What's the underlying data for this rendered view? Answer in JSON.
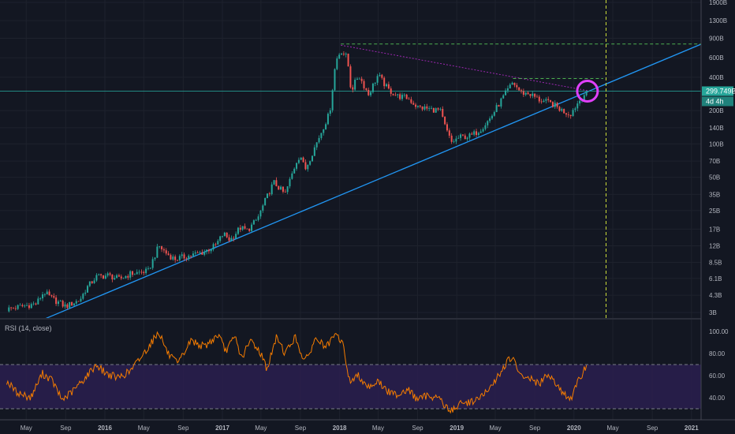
{
  "chart_data": [
    {
      "type": "candlestick",
      "title": "",
      "scale": "log",
      "ylim": [
        2.75,
        2000
      ],
      "y_ticks": [
        {
          "value": 3,
          "label": "3B"
        },
        {
          "value": 4.3,
          "label": "4.3B"
        },
        {
          "value": 6.1,
          "label": "6.1B"
        },
        {
          "value": 8.5,
          "label": "8.5B"
        },
        {
          "value": 12,
          "label": "12B"
        },
        {
          "value": 17,
          "label": "17B"
        },
        {
          "value": 25,
          "label": "25B"
        },
        {
          "value": 35,
          "label": "35B"
        },
        {
          "value": 50,
          "label": "50B"
        },
        {
          "value": 70,
          "label": "70B"
        },
        {
          "value": 100,
          "label": "100B"
        },
        {
          "value": 140,
          "label": "140B"
        },
        {
          "value": 200,
          "label": "200B"
        },
        {
          "value": 400,
          "label": "400B"
        },
        {
          "value": 600,
          "label": "600B"
        },
        {
          "value": 900,
          "label": "900B"
        },
        {
          "value": 1300,
          "label": "1300B"
        },
        {
          "value": 1900,
          "label": "1900B"
        }
      ],
      "x_ticks": [
        {
          "date": "2015-05-01",
          "label": "May"
        },
        {
          "date": "2015-09-01",
          "label": "Sep"
        },
        {
          "date": "2016-01-01",
          "label": "2016"
        },
        {
          "date": "2016-05-01",
          "label": "May"
        },
        {
          "date": "2016-09-01",
          "label": "Sep"
        },
        {
          "date": "2017-01-01",
          "label": "2017"
        },
        {
          "date": "2017-05-01",
          "label": "May"
        },
        {
          "date": "2017-09-01",
          "label": "Sep"
        },
        {
          "date": "2018-01-01",
          "label": "2018"
        },
        {
          "date": "2018-05-01",
          "label": "May"
        },
        {
          "date": "2018-09-01",
          "label": "Sep"
        },
        {
          "date": "2019-01-01",
          "label": "2019"
        },
        {
          "date": "2019-05-01",
          "label": "May"
        },
        {
          "date": "2019-09-01",
          "label": "Sep"
        },
        {
          "date": "2020-01-01",
          "label": "2020"
        },
        {
          "date": "2020-05-01",
          "label": "May"
        },
        {
          "date": "2020-09-01",
          "label": "Sep"
        },
        {
          "date": "2021-01-01",
          "label": "2021"
        }
      ],
      "price_anchors": [
        [
          "2015-03-01",
          3.2
        ],
        [
          "2015-04-15",
          3.4
        ],
        [
          "2015-06-01",
          3.6
        ],
        [
          "2015-06-25",
          4.6
        ],
        [
          "2015-07-20",
          4.0
        ],
        [
          "2015-09-01",
          3.4
        ],
        [
          "2015-10-15",
          3.9
        ],
        [
          "2015-11-05",
          5.0
        ],
        [
          "2015-12-05",
          6.3
        ],
        [
          "2016-01-10",
          6.5
        ],
        [
          "2016-02-15",
          6.0
        ],
        [
          "2016-03-20",
          6.7
        ],
        [
          "2016-05-15",
          7.1
        ],
        [
          "2016-06-17",
          12.0
        ],
        [
          "2016-07-10",
          10.3
        ],
        [
          "2016-08-05",
          9.1
        ],
        [
          "2016-09-15",
          9.7
        ],
        [
          "2016-11-01",
          10.5
        ],
        [
          "2016-12-10",
          12.0
        ],
        [
          "2017-01-04",
          15.5
        ],
        [
          "2017-01-25",
          13.5
        ],
        [
          "2017-02-25",
          17.5
        ],
        [
          "2017-03-20",
          16.5
        ],
        [
          "2017-04-20",
          21.0
        ],
        [
          "2017-05-15",
          31.0
        ],
        [
          "2017-06-10",
          45.0
        ],
        [
          "2017-07-15",
          35.0
        ],
        [
          "2017-08-20",
          70.0
        ],
        [
          "2017-09-01",
          80.0
        ],
        [
          "2017-09-15",
          58.0
        ],
        [
          "2017-10-20",
          100.0
        ],
        [
          "2017-11-15",
          150.0
        ],
        [
          "2017-12-01",
          190.0
        ],
        [
          "2017-12-20",
          560.0
        ],
        [
          "2018-01-05",
          700.0
        ],
        [
          "2018-01-25",
          600.0
        ],
        [
          "2018-02-06",
          300.0
        ],
        [
          "2018-03-01",
          420.0
        ],
        [
          "2018-04-01",
          280.0
        ],
        [
          "2018-05-01",
          420.0
        ],
        [
          "2018-06-01",
          310.0
        ],
        [
          "2018-07-01",
          270.0
        ],
        [
          "2018-08-01",
          260.0
        ],
        [
          "2018-09-01",
          215.0
        ],
        [
          "2018-10-15",
          205.0
        ],
        [
          "2018-11-10",
          200.0
        ],
        [
          "2018-11-25",
          145.0
        ],
        [
          "2018-12-15",
          103.0
        ],
        [
          "2019-01-10",
          115.0
        ],
        [
          "2019-02-15",
          118.0
        ],
        [
          "2019-03-15",
          135.0
        ],
        [
          "2019-04-15",
          170.0
        ],
        [
          "2019-05-20",
          250.0
        ],
        [
          "2019-06-25",
          360.0
        ],
        [
          "2019-07-20",
          290.0
        ],
        [
          "2019-08-15",
          285.0
        ],
        [
          "2019-09-15",
          250.0
        ],
        [
          "2019-10-25",
          230.0
        ],
        [
          "2019-11-25",
          200.0
        ],
        [
          "2019-12-20",
          185.0
        ],
        [
          "2020-01-15",
          240.0
        ],
        [
          "2020-02-10",
          299.749
        ]
      ],
      "current": {
        "value": 299.749,
        "label": "299.749B",
        "countdown": "4d 4h"
      },
      "trendlines": [
        {
          "kind": "support",
          "color": "#2196f3",
          "style": "solid",
          "from": [
            "2015-07-01",
            2.65
          ],
          "to": [
            "2021-02-15",
            830.0
          ]
        },
        {
          "kind": "resistance",
          "color": "#9c27b0",
          "style": "dashed",
          "from": [
            "2018-01-05",
            780.0
          ],
          "to": [
            "2020-02-20",
            300.0
          ]
        }
      ],
      "horizontal_levels": [
        {
          "value": 800,
          "color": "#4caf50",
          "style": "dashed",
          "from": "2018-01-05",
          "to": "2021-02-15"
        },
        {
          "value": 390,
          "color": "#4caf50",
          "style": "dashed",
          "from": "2019-06-25",
          "to": "2020-04-01"
        },
        {
          "value": 299.749,
          "color": "#26a69a",
          "style": "solid"
        }
      ],
      "vertical_markers": [
        {
          "date": "2020-04-10",
          "color": "#cddc39",
          "style": "dashed"
        }
      ],
      "highlight": {
        "date": "2020-02-12",
        "value": 300,
        "color": "#e040fb",
        "shape": "circle"
      }
    },
    {
      "type": "line",
      "title": "RSI (14, close)",
      "ylim": [
        25,
        110
      ],
      "y_ticks": [
        40.0,
        60.0,
        80.0,
        100.0
      ],
      "y_tick_labels": [
        "40.00",
        "60.00",
        "80.00",
        "100.00"
      ],
      "band": {
        "upper": 70,
        "lower": 30,
        "fill": "#2a1f4f"
      },
      "line_color": "#f57c00",
      "series_anchors": [
        [
          "2015-03-01",
          55
        ],
        [
          "2015-04-01",
          45
        ],
        [
          "2015-05-15",
          40
        ],
        [
          "2015-06-20",
          62
        ],
        [
          "2015-07-20",
          56
        ],
        [
          "2015-08-20",
          38
        ],
        [
          "2015-09-20",
          45
        ],
        [
          "2015-11-01",
          58
        ],
        [
          "2015-12-05",
          70
        ],
        [
          "2016-01-05",
          62
        ],
        [
          "2016-02-10",
          58
        ],
        [
          "2016-03-20",
          64
        ],
        [
          "2016-05-01",
          80
        ],
        [
          "2016-06-17",
          100
        ],
        [
          "2016-07-15",
          80
        ],
        [
          "2016-08-15",
          70
        ],
        [
          "2016-09-25",
          92
        ],
        [
          "2016-11-05",
          86
        ],
        [
          "2016-12-20",
          97
        ],
        [
          "2017-01-10",
          82
        ],
        [
          "2017-02-10",
          95
        ],
        [
          "2017-03-01",
          76
        ],
        [
          "2017-04-01",
          92
        ],
        [
          "2017-05-01",
          80
        ],
        [
          "2017-05-20",
          66
        ],
        [
          "2017-06-20",
          96
        ],
        [
          "2017-07-15",
          80
        ],
        [
          "2017-08-15",
          95
        ],
        [
          "2017-09-15",
          72
        ],
        [
          "2017-10-20",
          94
        ],
        [
          "2017-11-20",
          85
        ],
        [
          "2017-12-20",
          97
        ],
        [
          "2018-01-10",
          90
        ],
        [
          "2018-02-01",
          55
        ],
        [
          "2018-03-01",
          60
        ],
        [
          "2018-04-01",
          50
        ],
        [
          "2018-05-01",
          55
        ],
        [
          "2018-06-01",
          45
        ],
        [
          "2018-07-01",
          43
        ],
        [
          "2018-08-01",
          48
        ],
        [
          "2018-09-01",
          38
        ],
        [
          "2018-10-01",
          42
        ],
        [
          "2018-11-10",
          40
        ],
        [
          "2018-11-25",
          32
        ],
        [
          "2018-12-15",
          28
        ],
        [
          "2019-01-10",
          34
        ],
        [
          "2019-02-10",
          36
        ],
        [
          "2019-03-15",
          40
        ],
        [
          "2019-04-15",
          48
        ],
        [
          "2019-05-15",
          62
        ],
        [
          "2019-06-10",
          74
        ],
        [
          "2019-06-25",
          76
        ],
        [
          "2019-07-15",
          60
        ],
        [
          "2019-08-15",
          58
        ],
        [
          "2019-09-15",
          52
        ],
        [
          "2019-10-15",
          62
        ],
        [
          "2019-11-15",
          50
        ],
        [
          "2019-12-01",
          42
        ],
        [
          "2019-12-25",
          40
        ],
        [
          "2020-01-15",
          55
        ],
        [
          "2020-02-10",
          70
        ]
      ]
    }
  ]
}
